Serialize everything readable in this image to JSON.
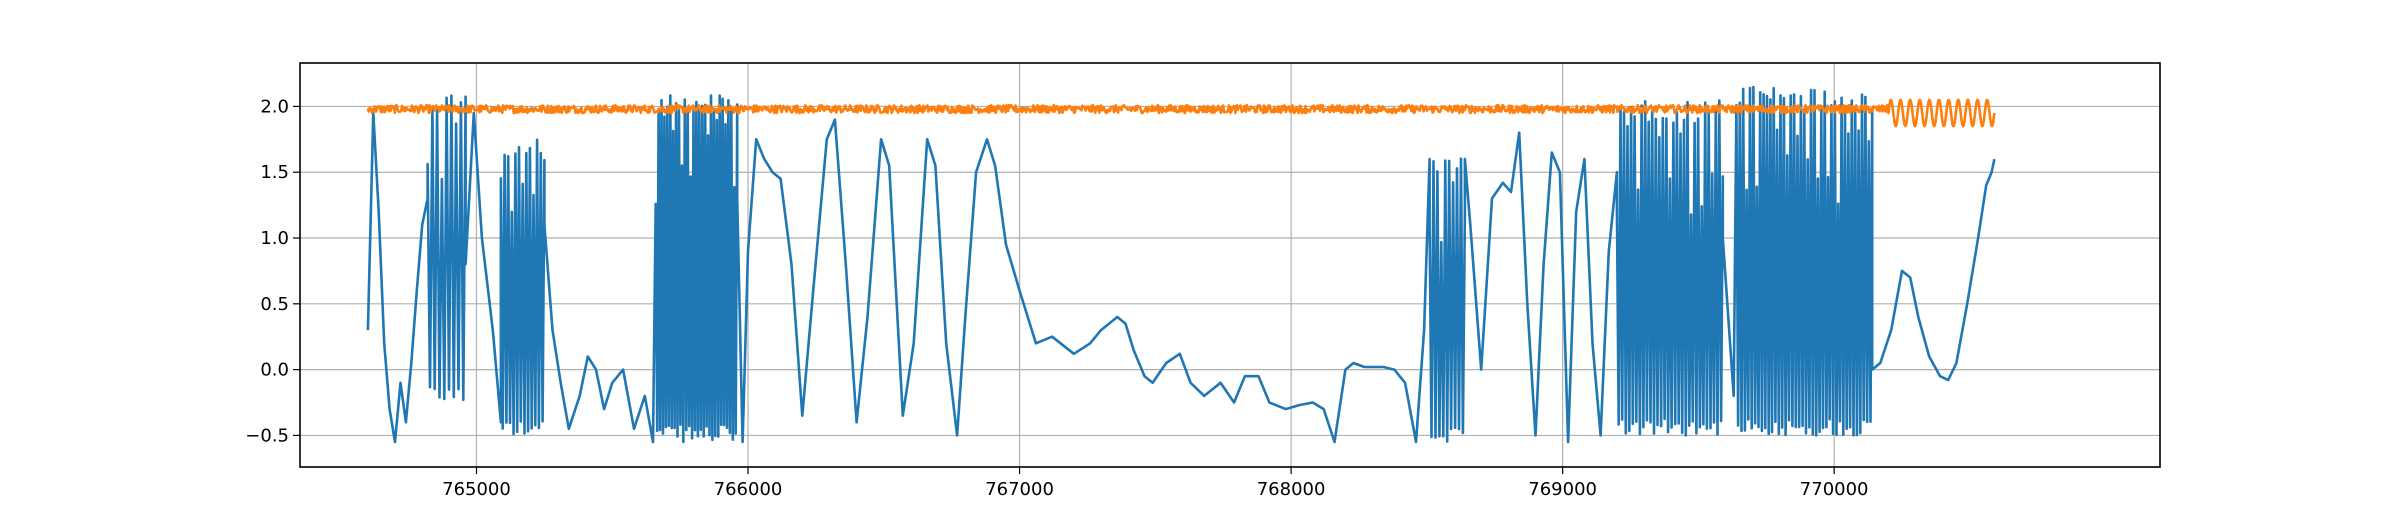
{
  "chart_data": {
    "type": "line",
    "title": "",
    "xlabel": "",
    "ylabel": "",
    "xlim": [
      764350,
      771200
    ],
    "ylim": [
      -0.74,
      2.33
    ],
    "grid": true,
    "x_ticks": [
      765000,
      766000,
      767000,
      768000,
      769000,
      770000
    ],
    "x_tick_labels": [
      "765000",
      "766000",
      "767000",
      "768000",
      "769000",
      "770000"
    ],
    "y_ticks": [
      -0.5,
      0.0,
      0.5,
      1.0,
      1.5,
      2.0
    ],
    "y_tick_labels": [
      "−0.5",
      "0.0",
      "0.5",
      "1.0",
      "1.5",
      "2.0"
    ],
    "series": [
      {
        "color": "#1f77b4",
        "segments": [
          {
            "kind": "points",
            "x": [
              764600,
              764620,
              764640,
              764660,
              764680,
              764700,
              764720,
              764740,
              764760,
              764780,
              764800,
              764820
            ],
            "y": [
              0.3,
              1.95,
              1.2,
              0.2,
              -0.3,
              -0.55,
              -0.1,
              -0.4,
              0.05,
              0.6,
              1.1,
              1.3
            ]
          },
          {
            "kind": "osc",
            "x0": 764820,
            "x1": 764960,
            "n": 8,
            "lo": -0.25,
            "hi": 2.1
          },
          {
            "kind": "points",
            "x": [
              764960,
              764990,
              765020,
              765060,
              765090
            ],
            "y": [
              0.8,
              1.95,
              1.0,
              0.3,
              -0.4
            ]
          },
          {
            "kind": "osc",
            "x0": 765090,
            "x1": 765250,
            "n": 12,
            "lo": -0.5,
            "hi": 1.75
          },
          {
            "kind": "points",
            "x": [
              765250,
              765280,
              765310,
              765340,
              765380,
              765410,
              765440,
              765470,
              765500,
              765540,
              765580,
              765620,
              765650
            ],
            "y": [
              1.1,
              0.3,
              -0.1,
              -0.45,
              -0.2,
              0.1,
              0.0,
              -0.3,
              -0.1,
              0.0,
              -0.45,
              -0.2,
              -0.55
            ]
          },
          {
            "kind": "osc",
            "x0": 765660,
            "x1": 765960,
            "n": 28,
            "lo": -0.55,
            "hi": 2.1
          },
          {
            "kind": "points",
            "x": [
              765960,
              765980,
              766000,
              766030,
              766060,
              766090,
              766120,
              766160,
              766200,
              766240,
              766290,
              766320,
              766360,
              766400,
              766440,
              766490,
              766520,
              766570,
              766610,
              766660,
              766690,
              766730,
              766770,
              766800,
              766840,
              766880,
              766910,
              766950,
              767000,
              767060,
              767120,
              767200,
              767260,
              767300,
              767360,
              767390,
              767420,
              767460,
              767490,
              767540,
              767590,
              767630,
              767680,
              767740,
              767790,
              767830,
              767880,
              767920,
              767980,
              768030,
              768080,
              768120,
              768160,
              768200,
              768230,
              768270,
              768300,
              768340,
              768380,
              768420,
              768460,
              768490,
              768510
            ],
            "y": [
              1.3,
              -0.55,
              0.9,
              1.75,
              1.6,
              1.5,
              1.45,
              0.8,
              -0.35,
              0.6,
              1.75,
              1.9,
              0.8,
              -0.4,
              0.4,
              1.75,
              1.55,
              -0.35,
              0.2,
              1.75,
              1.55,
              0.2,
              -0.5,
              0.4,
              1.5,
              1.75,
              1.55,
              0.95,
              0.6,
              0.2,
              0.25,
              0.12,
              0.2,
              0.3,
              0.4,
              0.35,
              0.15,
              -0.05,
              -0.1,
              0.05,
              0.12,
              -0.1,
              -0.2,
              -0.1,
              -0.25,
              -0.05,
              -0.05,
              -0.25,
              -0.3,
              -0.27,
              -0.25,
              -0.3,
              -0.55,
              0.0,
              0.05,
              0.02,
              0.02,
              0.02,
              0.0,
              -0.1,
              -0.55,
              0.3,
              1.6
            ]
          },
          {
            "kind": "osc",
            "x0": 768510,
            "x1": 768640,
            "n": 9,
            "lo": -0.55,
            "hi": 1.65
          },
          {
            "kind": "points",
            "x": [
              768640,
              768660,
              768700,
              768740,
              768780,
              768810,
              768840,
              768870,
              768900,
              768930,
              768960,
              768990,
              769020,
              769050,
              769080,
              769110,
              769140,
              769170,
              769200
            ],
            "y": [
              1.6,
              1.1,
              0.0,
              1.3,
              1.42,
              1.35,
              1.8,
              0.5,
              -0.5,
              0.8,
              1.65,
              1.5,
              -0.55,
              1.2,
              1.6,
              0.2,
              -0.5,
              0.9,
              1.5
            ]
          },
          {
            "kind": "osc",
            "x0": 769200,
            "x1": 769590,
            "n": 30,
            "lo": -0.5,
            "hi": 2.05
          },
          {
            "kind": "points",
            "x": [
              769590,
              769630
            ],
            "y": [
              1.0,
              -0.2
            ]
          },
          {
            "kind": "osc",
            "x0": 769640,
            "x1": 770140,
            "n": 40,
            "lo": -0.5,
            "hi": 2.15
          },
          {
            "kind": "points",
            "x": [
              770140,
              770170,
              770210,
              770250,
              770280,
              770310,
              770350,
              770390,
              770420,
              770450,
              770490,
              770530,
              770560,
              770580,
              770590
            ],
            "y": [
              0.0,
              0.05,
              0.3,
              0.75,
              0.7,
              0.4,
              0.1,
              -0.05,
              -0.08,
              0.05,
              0.5,
              1.0,
              1.4,
              1.5,
              1.6
            ]
          }
        ]
      },
      {
        "color": "#ff7f0e",
        "segments": [
          {
            "kind": "noise",
            "x0": 764600,
            "x1": 770200,
            "center": 1.98,
            "amp": 0.03
          },
          {
            "kind": "wave",
            "x0": 770200,
            "x1": 770590,
            "center": 1.95,
            "amp": 0.1,
            "cycles": 11
          }
        ]
      }
    ]
  }
}
